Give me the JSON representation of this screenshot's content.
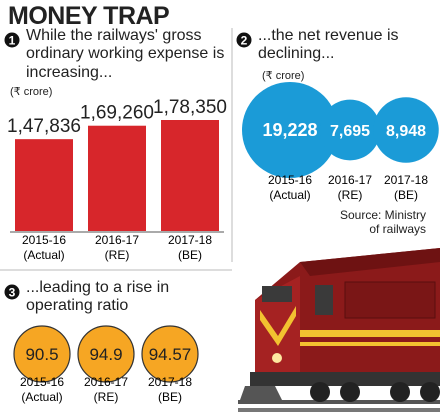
{
  "title": "MONEY TRAP",
  "source": [
    "Source: Ministry",
    "of railways"
  ],
  "chart_data": [
    {
      "type": "bar",
      "number": "1",
      "title": "While the railways' gross ordinary working expense is increasing...",
      "unit": "(₹ crore)",
      "categories": [
        [
          "2015-16",
          "(Actual)"
        ],
        [
          "2016-17",
          "(RE)"
        ],
        [
          "2017-18",
          "(BE)"
        ]
      ],
      "values": [
        147836,
        169260,
        178350
      ],
      "value_labels": [
        "1,47,836",
        "1,69,260",
        "1,78,350"
      ],
      "color": "#d7262b"
    },
    {
      "type": "bubble",
      "number": "2",
      "title": "...the net revenue is declining...",
      "unit": "(₹ crore)",
      "categories": [
        [
          "2015-16",
          "(Actual)"
        ],
        [
          "2016-17",
          "(RE)"
        ],
        [
          "2017-18",
          "(BE)"
        ]
      ],
      "values": [
        19228,
        7695,
        8948
      ],
      "value_labels": [
        "19,228",
        "7,695",
        "8,948"
      ],
      "color": "#1b9bd7"
    },
    {
      "type": "circle",
      "number": "3",
      "title": "...leading to a rise in operating ratio",
      "categories": [
        [
          "2015-16",
          "(Actual)"
        ],
        [
          "2016-17",
          "(RE)"
        ],
        [
          "2017-18",
          "(BE)"
        ]
      ],
      "values": [
        90.5,
        94.9,
        94.57
      ],
      "color": "#f6a623"
    }
  ]
}
